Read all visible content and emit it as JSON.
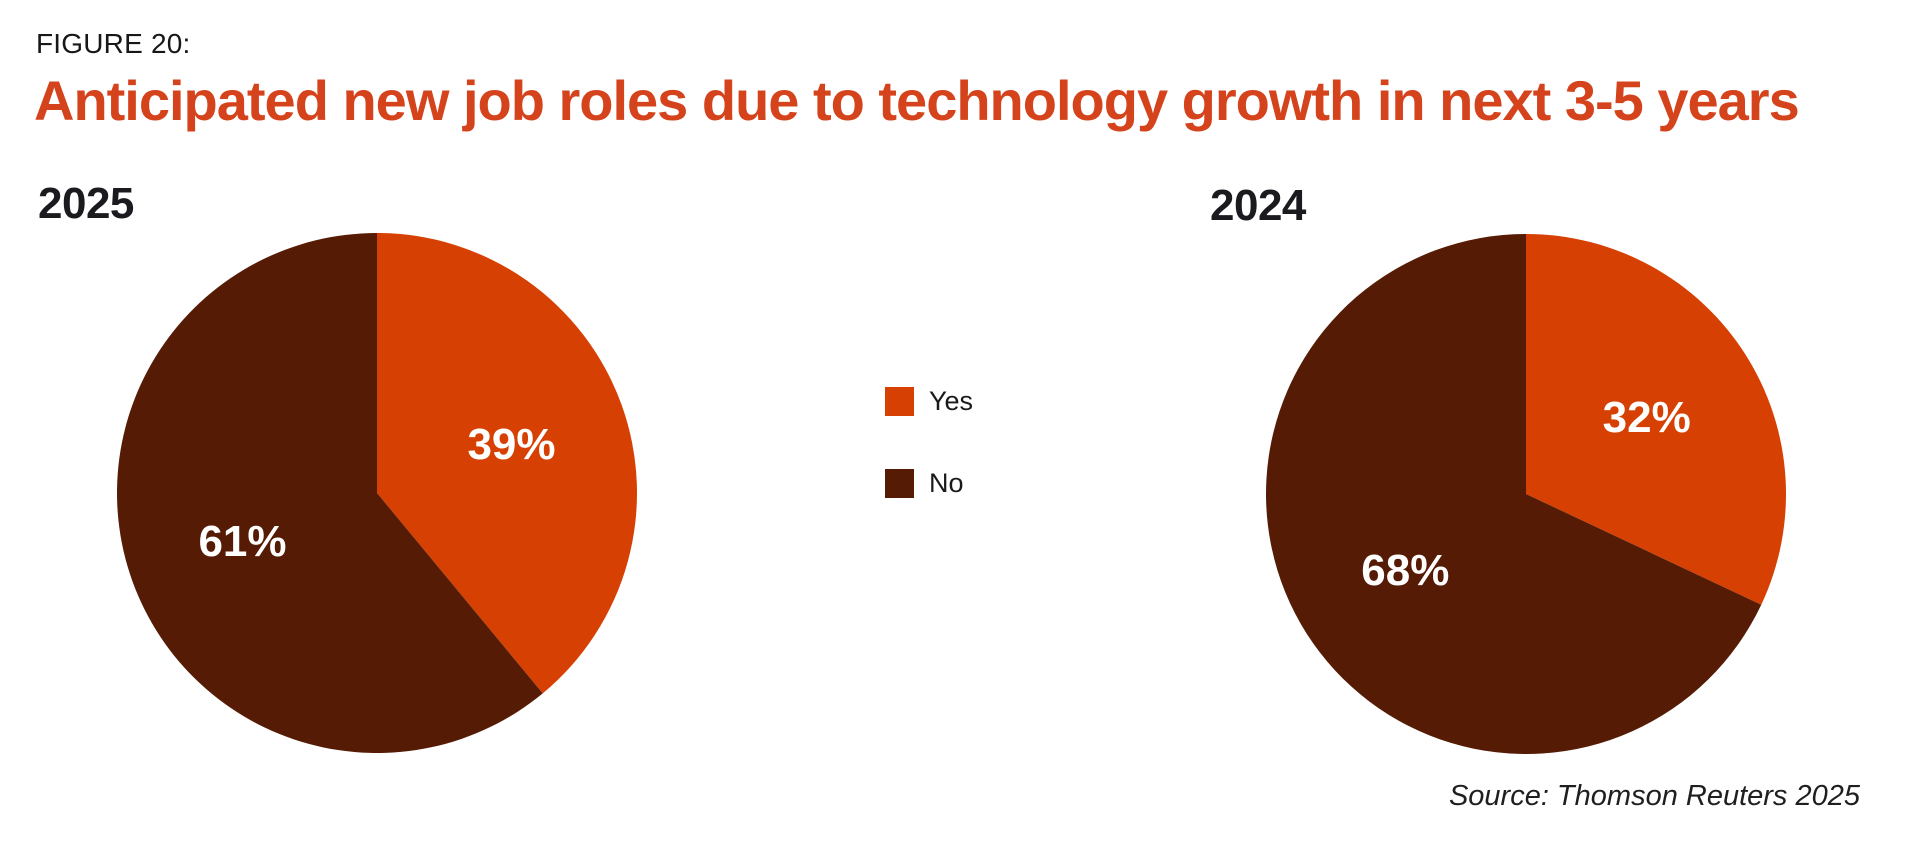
{
  "figure_label": "FIGURE 20:",
  "title": "Anticipated new job roles due to technology growth in next 3-5 years",
  "source": "Source: Thomson Reuters 2025",
  "colors": {
    "title_orange": "#d5431c",
    "pie_orange": "#d64103",
    "pie_brown": "#551b04",
    "text_dark": "#1b1b1f"
  },
  "legend": [
    {
      "label": "Yes",
      "color": "#d64103"
    },
    {
      "label": "No",
      "color": "#551b04"
    }
  ],
  "chart_data": [
    {
      "type": "pie",
      "title": "2025",
      "labels": [
        "Yes",
        "No"
      ],
      "values": [
        39,
        61
      ],
      "value_labels": [
        "39%",
        "61%"
      ],
      "colors": [
        "#d64103",
        "#551b04"
      ],
      "start_angle_deg": 0,
      "direction": "clockwise",
      "legend_position": "center-between-charts"
    },
    {
      "type": "pie",
      "title": "2024",
      "labels": [
        "Yes",
        "No"
      ],
      "values": [
        32,
        68
      ],
      "value_labels": [
        "32%",
        "68%"
      ],
      "colors": [
        "#d64103",
        "#551b04"
      ],
      "start_angle_deg": 0,
      "direction": "clockwise",
      "legend_position": "center-between-charts"
    }
  ]
}
